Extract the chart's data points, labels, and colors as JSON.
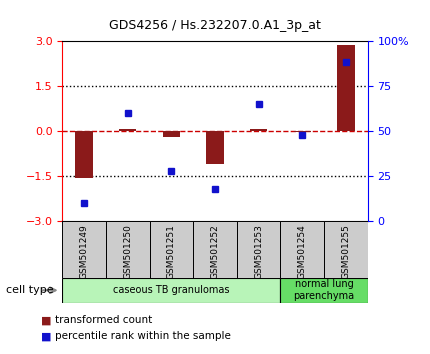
{
  "title": "GDS4256 / Hs.232207.0.A1_3p_at",
  "samples": [
    "GSM501249",
    "GSM501250",
    "GSM501251",
    "GSM501252",
    "GSM501253",
    "GSM501254",
    "GSM501255"
  ],
  "transformed_count": [
    -1.55,
    0.05,
    -0.2,
    -1.1,
    0.07,
    -0.05,
    2.85
  ],
  "percentile_rank": [
    10,
    60,
    28,
    18,
    65,
    48,
    88
  ],
  "ylim_left": [
    -3,
    3
  ],
  "ylim_right": [
    0,
    100
  ],
  "yticks_left": [
    -3,
    -1.5,
    0,
    1.5,
    3
  ],
  "yticks_right": [
    0,
    25,
    50,
    75,
    100
  ],
  "ytick_labels_right": [
    "0",
    "25",
    "50",
    "75",
    "100%"
  ],
  "bar_color": "#8B1A1A",
  "dot_color": "#1111CC",
  "hline_color": "#CC0000",
  "dotted_line_color": "#000000",
  "cell_type_groups": [
    {
      "label": "caseous TB granulomas",
      "color": "#b8f4b8",
      "start": 0,
      "end": 5
    },
    {
      "label": "normal lung\nparenchyma",
      "color": "#66dd66",
      "start": 5,
      "end": 7
    }
  ],
  "legend_transformed": "transformed count",
  "legend_percentile": "percentile rank within the sample",
  "cell_type_label": "cell type",
  "background_color": "#ffffff",
  "bar_width": 0.4,
  "dot_size": 5,
  "left_tick_color": "red",
  "right_tick_color": "blue"
}
